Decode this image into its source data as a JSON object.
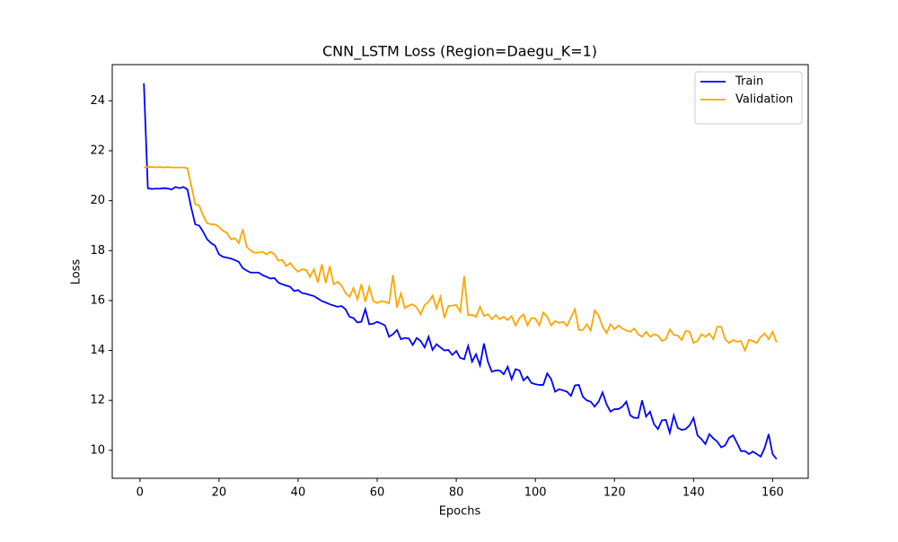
{
  "chart_data": {
    "type": "line",
    "title": "CNN_LSTM Loss (Region=Daegu_K=1)",
    "xlabel": "Epochs",
    "ylabel": "Loss",
    "x": [
      1,
      2,
      3,
      4,
      5,
      6,
      7,
      8,
      9,
      10,
      11,
      12,
      13,
      14,
      15,
      16,
      17,
      18,
      19,
      20,
      21,
      22,
      23,
      24,
      25,
      26,
      27,
      28,
      29,
      30,
      31,
      32,
      33,
      34,
      35,
      36,
      37,
      38,
      39,
      40,
      41,
      42,
      43,
      44,
      45,
      46,
      47,
      48,
      49,
      50,
      51,
      52,
      53,
      54,
      55,
      56,
      57,
      58,
      59,
      60,
      61,
      62,
      63,
      64,
      65,
      66,
      67,
      68,
      69,
      70,
      71,
      72,
      73,
      74,
      75,
      76,
      77,
      78,
      79,
      80,
      81,
      82,
      83,
      84,
      85,
      86,
      87,
      88,
      89,
      90,
      91,
      92,
      93,
      94,
      95,
      96,
      97,
      98,
      99,
      100,
      101,
      102,
      103,
      104,
      105,
      106,
      107,
      108,
      109,
      110,
      111,
      112,
      113,
      114,
      115,
      116,
      117,
      118,
      119,
      120,
      121,
      122,
      123,
      124,
      125,
      126,
      127,
      128,
      129,
      130,
      131,
      132,
      133,
      134,
      135,
      136,
      137,
      138,
      139,
      140,
      141,
      142,
      143,
      144,
      145,
      146,
      147,
      148,
      149,
      150,
      151,
      152,
      153,
      154,
      155,
      156,
      157,
      158,
      159,
      160,
      161
    ],
    "series": [
      {
        "name": "Train",
        "color": "#0000ff",
        "values": [
          24.7,
          20.5,
          20.47,
          20.48,
          20.48,
          20.5,
          20.49,
          20.45,
          20.55,
          20.5,
          20.55,
          20.45,
          19.7,
          19.05,
          19.0,
          18.75,
          18.45,
          18.3,
          18.2,
          17.85,
          17.75,
          17.72,
          17.68,
          17.62,
          17.55,
          17.3,
          17.2,
          17.12,
          17.12,
          17.12,
          17.02,
          16.95,
          16.88,
          16.9,
          16.72,
          16.65,
          16.6,
          16.55,
          16.38,
          16.42,
          16.3,
          16.27,
          16.22,
          16.18,
          16.08,
          15.98,
          15.92,
          15.85,
          15.8,
          15.75,
          15.78,
          15.65,
          15.35,
          15.3,
          15.12,
          15.15,
          15.65,
          15.05,
          15.07,
          15.15,
          15.08,
          15.0,
          14.55,
          14.65,
          14.82,
          14.45,
          14.5,
          14.48,
          14.22,
          14.5,
          14.38,
          14.12,
          14.55,
          14.02,
          14.25,
          14.12,
          14.0,
          14.02,
          13.82,
          13.98,
          13.7,
          13.65,
          14.18,
          13.55,
          13.85,
          13.4,
          14.28,
          13.55,
          13.15,
          13.2,
          13.2,
          13.05,
          13.35,
          12.85,
          13.25,
          13.2,
          12.8,
          12.95,
          12.7,
          12.65,
          12.62,
          12.62,
          13.08,
          12.85,
          12.35,
          12.45,
          12.4,
          12.35,
          12.18,
          12.6,
          12.62,
          12.15,
          12.0,
          11.95,
          11.75,
          11.95,
          12.32,
          11.85,
          11.55,
          11.65,
          11.65,
          11.75,
          11.95,
          11.4,
          11.3,
          11.3,
          12.0,
          11.35,
          11.55,
          11.05,
          10.85,
          11.2,
          11.22,
          10.7,
          11.4,
          10.9,
          10.82,
          10.85,
          11.0,
          11.3,
          10.6,
          10.45,
          10.25,
          10.65,
          10.48,
          10.35,
          10.12,
          10.2,
          10.5,
          10.6,
          10.3,
          9.97,
          9.97,
          9.85,
          9.95,
          9.85,
          9.75,
          10.1,
          10.65,
          9.85,
          9.65
        ]
      },
      {
        "name": "Validation",
        "color": "#ffa500",
        "values": [
          21.32,
          21.35,
          21.35,
          21.33,
          21.35,
          21.33,
          21.35,
          21.33,
          21.33,
          21.33,
          21.33,
          21.3,
          20.6,
          19.85,
          19.8,
          19.4,
          19.1,
          19.05,
          19.05,
          18.95,
          18.8,
          18.7,
          18.45,
          18.5,
          18.3,
          18.85,
          18.15,
          18.0,
          17.92,
          17.92,
          17.95,
          17.85,
          17.95,
          17.85,
          17.6,
          17.62,
          17.38,
          17.5,
          17.3,
          17.15,
          17.25,
          17.22,
          16.95,
          17.25,
          16.72,
          17.45,
          16.7,
          17.38,
          16.65,
          16.75,
          16.6,
          16.3,
          16.15,
          16.5,
          16.05,
          16.65,
          15.95,
          16.55,
          15.98,
          15.9,
          15.98,
          15.95,
          15.88,
          17.02,
          15.72,
          16.28,
          15.7,
          15.8,
          15.85,
          15.72,
          15.45,
          15.82,
          15.95,
          16.2,
          15.68,
          16.15,
          15.3,
          15.78,
          15.8,
          15.82,
          15.55,
          16.98,
          15.42,
          15.42,
          15.35,
          15.75,
          15.38,
          15.45,
          15.25,
          15.42,
          15.25,
          15.35,
          15.22,
          15.38,
          15.0,
          15.3,
          15.45,
          15.0,
          15.3,
          15.28,
          15.0,
          15.52,
          15.35,
          15.0,
          15.18,
          15.1,
          15.15,
          14.98,
          15.32,
          15.65,
          14.82,
          14.82,
          15.05,
          14.8,
          15.6,
          15.4,
          14.95,
          14.7,
          15.05,
          14.85,
          15.0,
          14.88,
          14.8,
          14.75,
          14.88,
          14.65,
          14.55,
          14.75,
          14.55,
          14.65,
          14.6,
          14.38,
          14.45,
          14.85,
          14.62,
          14.6,
          14.42,
          14.78,
          14.75,
          14.3,
          14.38,
          14.65,
          14.55,
          14.68,
          14.45,
          14.95,
          14.95,
          14.45,
          14.3,
          14.42,
          14.35,
          14.38,
          14.0,
          14.42,
          14.38,
          14.3,
          14.55,
          14.68,
          14.45,
          14.75,
          14.32
        ]
      }
    ],
    "xlim": [
      -7,
      169
    ],
    "ylim": [
      8.88,
      25.45
    ],
    "xticks": [
      0,
      20,
      40,
      60,
      80,
      100,
      120,
      140,
      160
    ],
    "yticks": [
      10,
      12,
      14,
      16,
      18,
      20,
      22,
      24
    ],
    "legend": "upper right"
  }
}
